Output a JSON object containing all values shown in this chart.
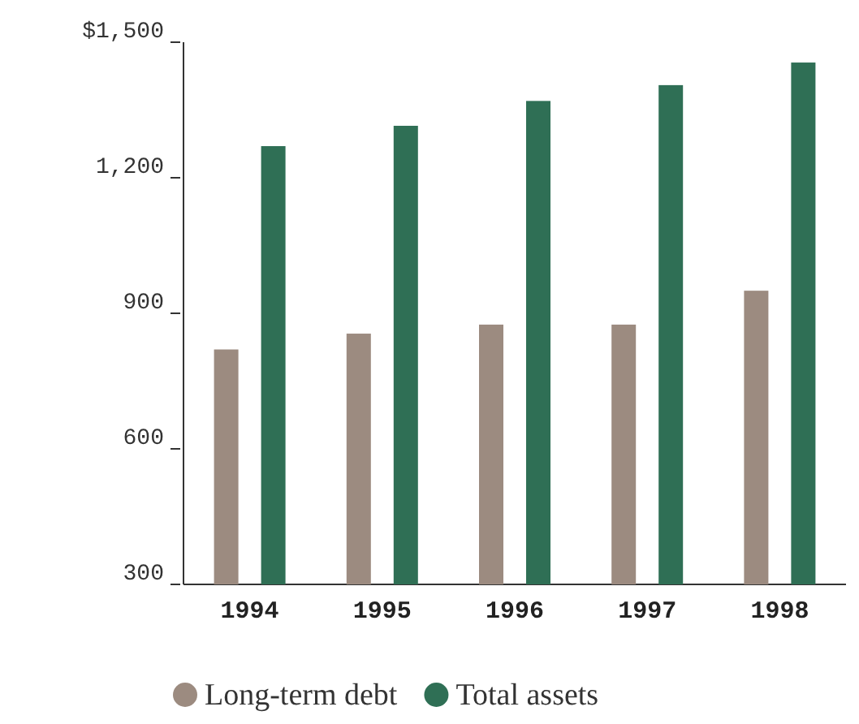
{
  "chart_data": {
    "type": "bar",
    "categories": [
      "1994",
      "1995",
      "1996",
      "1997",
      "1998"
    ],
    "series": [
      {
        "name": "Long-term debt",
        "color": "#9c8b80",
        "values": [
          820,
          855,
          875,
          875,
          950
        ]
      },
      {
        "name": "Total assets",
        "color": "#2f6f55",
        "values": [
          1270,
          1315,
          1370,
          1405,
          1455
        ]
      }
    ],
    "ylim": [
      300,
      1500
    ],
    "yticks": [
      300,
      600,
      900,
      {
        "value": 1200,
        "label": "1,200"
      },
      {
        "value": 1500,
        "label": "$1,500"
      }
    ],
    "grid": false,
    "legend": "bottom"
  }
}
